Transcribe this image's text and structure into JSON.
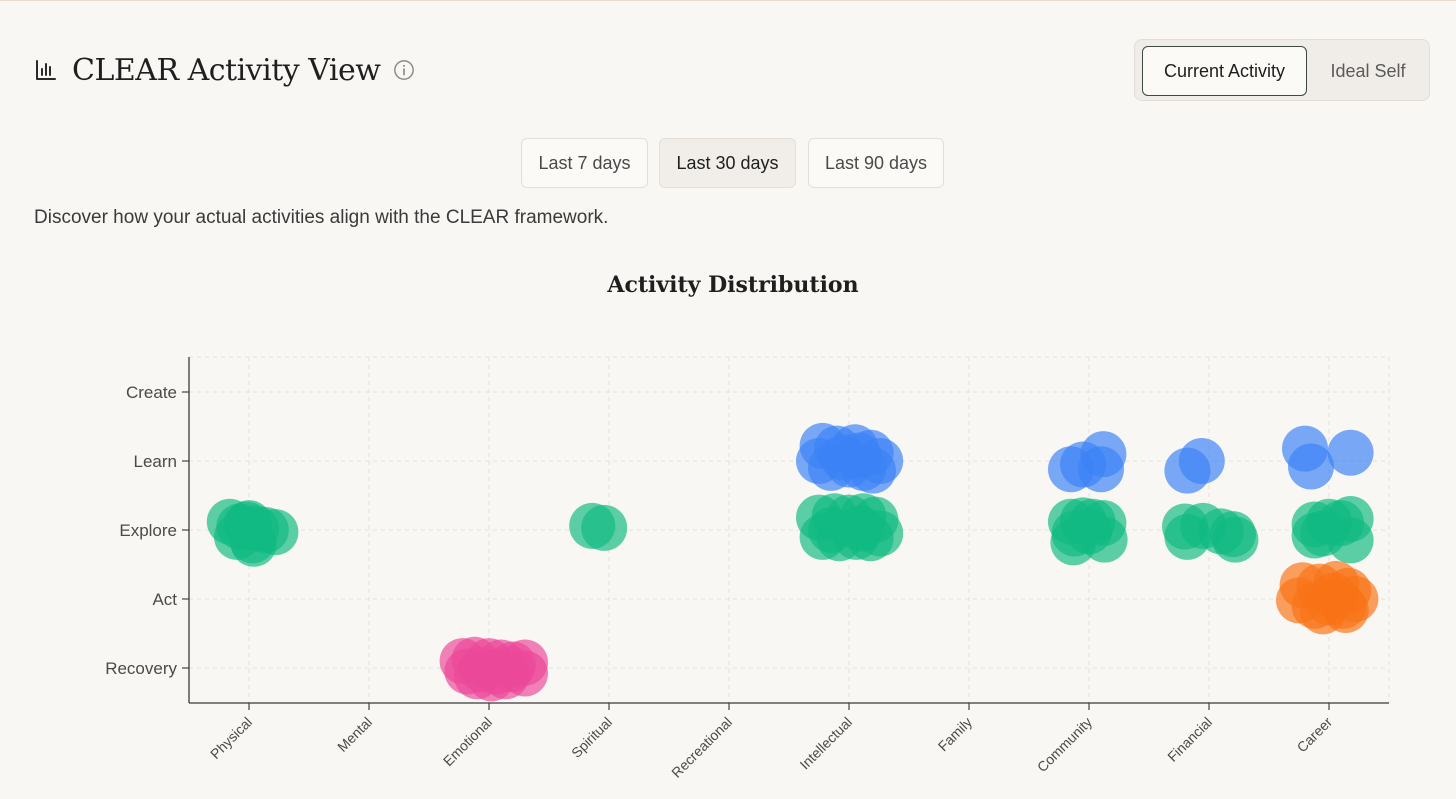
{
  "header": {
    "title": "CLEAR Activity View",
    "title_icon": "bar-chart-icon",
    "info_icon": "info-icon"
  },
  "view_toggle": {
    "options": [
      "Current Activity",
      "Ideal Self"
    ],
    "selected": "Current Activity"
  },
  "time_range": {
    "options": [
      "Last 7 days",
      "Last 30 days",
      "Last 90 days"
    ],
    "selected": "Last 30 days"
  },
  "description": "Discover how your actual activities align with the CLEAR framework.",
  "chart_data": {
    "type": "scatter",
    "title": "Activity Distribution",
    "xlabel": "",
    "ylabel": "",
    "categories": [
      "Physical",
      "Mental",
      "Emotional",
      "Spiritual",
      "Recreational",
      "Intellectual",
      "Family",
      "Community",
      "Financial",
      "Career"
    ],
    "levels": [
      "Recovery",
      "Act",
      "Explore",
      "Learn",
      "Create"
    ],
    "grid": true,
    "colors": {
      "Recovery": "#ec4899",
      "Act": "#f97316",
      "Explore": "#10b981",
      "Learn": "#3b82f6",
      "Create": "#8b5cf6"
    },
    "series": [
      {
        "name": "Explore",
        "points": [
          {
            "x": "Physical",
            "dx": -0.16,
            "dy": 0.12
          },
          {
            "x": "Physical",
            "dx": -0.08,
            "dy": 0.05
          },
          {
            "x": "Physical",
            "dx": 0.0,
            "dy": 0.1
          },
          {
            "x": "Physical",
            "dx": 0.06,
            "dy": 0.02
          },
          {
            "x": "Physical",
            "dx": 0.14,
            "dy": 0.0
          },
          {
            "x": "Physical",
            "dx": 0.22,
            "dy": -0.03
          },
          {
            "x": "Physical",
            "dx": -0.1,
            "dy": -0.1
          },
          {
            "x": "Physical",
            "dx": 0.03,
            "dy": -0.15
          },
          {
            "x": "Physical",
            "dx": 0.04,
            "dy": -0.2
          },
          {
            "x": "Physical",
            "dx": -0.02,
            "dy": 0.08
          },
          {
            "x": "Spiritual",
            "dx": -0.14,
            "dy": 0.06
          },
          {
            "x": "Spiritual",
            "dx": -0.04,
            "dy": 0.03
          },
          {
            "x": "Intellectual",
            "dx": -0.25,
            "dy": 0.18
          },
          {
            "x": "Intellectual",
            "dx": -0.12,
            "dy": 0.2
          },
          {
            "x": "Intellectual",
            "dx": 0.0,
            "dy": 0.18
          },
          {
            "x": "Intellectual",
            "dx": 0.12,
            "dy": 0.2
          },
          {
            "x": "Intellectual",
            "dx": 0.22,
            "dy": 0.15
          },
          {
            "x": "Intellectual",
            "dx": -0.22,
            "dy": -0.1
          },
          {
            "x": "Intellectual",
            "dx": -0.08,
            "dy": -0.12
          },
          {
            "x": "Intellectual",
            "dx": 0.06,
            "dy": -0.1
          },
          {
            "x": "Intellectual",
            "dx": 0.18,
            "dy": -0.12
          },
          {
            "x": "Intellectual",
            "dx": 0.26,
            "dy": -0.05
          },
          {
            "x": "Intellectual",
            "dx": -0.15,
            "dy": 0.0
          },
          {
            "x": "Intellectual",
            "dx": 0.1,
            "dy": 0.02
          },
          {
            "x": "Community",
            "dx": -0.15,
            "dy": 0.12
          },
          {
            "x": "Community",
            "dx": -0.05,
            "dy": 0.14
          },
          {
            "x": "Community",
            "dx": 0.03,
            "dy": 0.12
          },
          {
            "x": "Community",
            "dx": 0.12,
            "dy": 0.1
          },
          {
            "x": "Community",
            "dx": -0.12,
            "dy": -0.05
          },
          {
            "x": "Community",
            "dx": 0.0,
            "dy": -0.02
          },
          {
            "x": "Community",
            "dx": 0.13,
            "dy": -0.14
          },
          {
            "x": "Community",
            "dx": -0.13,
            "dy": -0.18
          },
          {
            "x": "Financial",
            "dx": -0.2,
            "dy": 0.05
          },
          {
            "x": "Financial",
            "dx": -0.05,
            "dy": 0.06
          },
          {
            "x": "Financial",
            "dx": 0.1,
            "dy": -0.02
          },
          {
            "x": "Financial",
            "dx": 0.2,
            "dy": -0.06
          },
          {
            "x": "Financial",
            "dx": -0.18,
            "dy": -0.1
          },
          {
            "x": "Financial",
            "dx": 0.22,
            "dy": -0.14
          },
          {
            "x": "Career",
            "dx": -0.12,
            "dy": 0.08
          },
          {
            "x": "Career",
            "dx": 0.0,
            "dy": 0.12
          },
          {
            "x": "Career",
            "dx": 0.1,
            "dy": 0.1
          },
          {
            "x": "Career",
            "dx": 0.18,
            "dy": 0.16
          },
          {
            "x": "Career",
            "dx": -0.05,
            "dy": -0.05
          },
          {
            "x": "Career",
            "dx": -0.12,
            "dy": -0.08
          },
          {
            "x": "Career",
            "dx": 0.18,
            "dy": -0.15
          }
        ]
      },
      {
        "name": "Learn",
        "points": [
          {
            "x": "Intellectual",
            "dx": -0.22,
            "dy": 0.22
          },
          {
            "x": "Intellectual",
            "dx": -0.1,
            "dy": 0.18
          },
          {
            "x": "Intellectual",
            "dx": 0.05,
            "dy": 0.2
          },
          {
            "x": "Intellectual",
            "dx": 0.18,
            "dy": 0.12
          },
          {
            "x": "Intellectual",
            "dx": 0.26,
            "dy": 0.0
          },
          {
            "x": "Intellectual",
            "dx": -0.25,
            "dy": 0.0
          },
          {
            "x": "Intellectual",
            "dx": -0.15,
            "dy": -0.1
          },
          {
            "x": "Intellectual",
            "dx": 0.0,
            "dy": -0.05
          },
          {
            "x": "Intellectual",
            "dx": 0.12,
            "dy": -0.1
          },
          {
            "x": "Intellectual",
            "dx": 0.2,
            "dy": -0.14
          },
          {
            "x": "Intellectual",
            "dx": -0.05,
            "dy": 0.05
          },
          {
            "x": "Intellectual",
            "dx": 0.08,
            "dy": 0.08
          },
          {
            "x": "Community",
            "dx": -0.15,
            "dy": -0.12
          },
          {
            "x": "Community",
            "dx": -0.05,
            "dy": -0.05
          },
          {
            "x": "Community",
            "dx": 0.1,
            "dy": -0.12
          },
          {
            "x": "Community",
            "dx": 0.12,
            "dy": 0.1
          },
          {
            "x": "Financial",
            "dx": -0.18,
            "dy": -0.14
          },
          {
            "x": "Financial",
            "dx": -0.06,
            "dy": 0.0
          },
          {
            "x": "Career",
            "dx": -0.2,
            "dy": 0.18
          },
          {
            "x": "Career",
            "dx": -0.15,
            "dy": -0.08
          },
          {
            "x": "Career",
            "dx": 0.18,
            "dy": 0.12
          }
        ]
      },
      {
        "name": "Act",
        "points": [
          {
            "x": "Career",
            "dx": -0.22,
            "dy": 0.2
          },
          {
            "x": "Career",
            "dx": -0.08,
            "dy": 0.18
          },
          {
            "x": "Career",
            "dx": 0.06,
            "dy": 0.22
          },
          {
            "x": "Career",
            "dx": 0.16,
            "dy": 0.12
          },
          {
            "x": "Career",
            "dx": 0.22,
            "dy": 0.0
          },
          {
            "x": "Career",
            "dx": -0.25,
            "dy": -0.02
          },
          {
            "x": "Career",
            "dx": -0.12,
            "dy": -0.1
          },
          {
            "x": "Career",
            "dx": 0.0,
            "dy": -0.05
          },
          {
            "x": "Career",
            "dx": 0.12,
            "dy": -0.1
          },
          {
            "x": "Career",
            "dx": -0.05,
            "dy": -0.18
          },
          {
            "x": "Career",
            "dx": 0.14,
            "dy": -0.16
          },
          {
            "x": "Career",
            "dx": 0.04,
            "dy": 0.05
          }
        ]
      },
      {
        "name": "Recovery",
        "points": [
          {
            "x": "Emotional",
            "dx": -0.22,
            "dy": 0.1
          },
          {
            "x": "Emotional",
            "dx": -0.12,
            "dy": 0.12
          },
          {
            "x": "Emotional",
            "dx": 0.0,
            "dy": 0.1
          },
          {
            "x": "Emotional",
            "dx": 0.1,
            "dy": 0.08
          },
          {
            "x": "Emotional",
            "dx": 0.2,
            "dy": 0.05
          },
          {
            "x": "Emotional",
            "dx": 0.3,
            "dy": 0.08
          },
          {
            "x": "Emotional",
            "dx": -0.18,
            "dy": -0.05
          },
          {
            "x": "Emotional",
            "dx": -0.06,
            "dy": -0.02
          },
          {
            "x": "Emotional",
            "dx": 0.06,
            "dy": -0.05
          },
          {
            "x": "Emotional",
            "dx": 0.18,
            "dy": -0.02
          },
          {
            "x": "Emotional",
            "dx": -0.1,
            "dy": -0.12
          },
          {
            "x": "Emotional",
            "dx": 0.02,
            "dy": -0.15
          },
          {
            "x": "Emotional",
            "dx": 0.14,
            "dy": -0.12
          },
          {
            "x": "Emotional",
            "dx": 0.3,
            "dy": -0.08
          }
        ]
      }
    ]
  }
}
